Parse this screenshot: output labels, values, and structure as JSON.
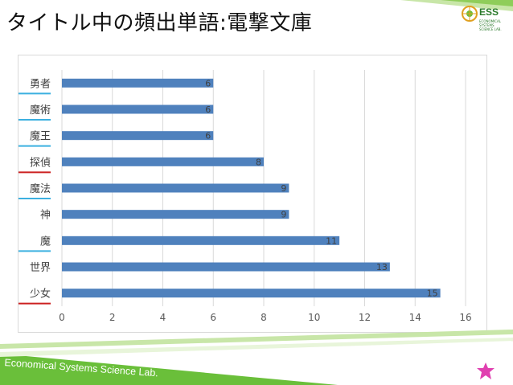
{
  "slide": {
    "title": "タイトル中の頻出単語:電撃文庫",
    "logo_text": "ESS",
    "logo_subtext": "ECONOMICAL SYSTEMS SCIENCE LAB.",
    "footer": "Economical Systems Science Lab."
  },
  "colors": {
    "bar": "#4f81bd",
    "accent_green": "#6abf3a",
    "underline_blue": "#3cb0e0",
    "underline_red": "#cc2020",
    "star": "#e040b0"
  },
  "chart_data": {
    "type": "bar",
    "orientation": "horizontal",
    "categories": [
      "勇者",
      "魔術",
      "魔王",
      "探偵",
      "魔法",
      "神",
      "魔",
      "世界",
      "少女"
    ],
    "values": [
      6,
      6,
      6,
      8,
      9,
      9,
      11,
      13,
      15
    ],
    "xlim": [
      0,
      16
    ],
    "xticks": [
      0,
      2,
      4,
      6,
      8,
      10,
      12,
      14,
      16
    ],
    "grid": true,
    "title": "",
    "xlabel": "",
    "ylabel": "",
    "underlines": {
      "勇者": "blue",
      "魔術": "blue",
      "魔王": "blue",
      "探偵": "red",
      "魔法": "blue",
      "魔": "blue",
      "少女": "red"
    }
  }
}
